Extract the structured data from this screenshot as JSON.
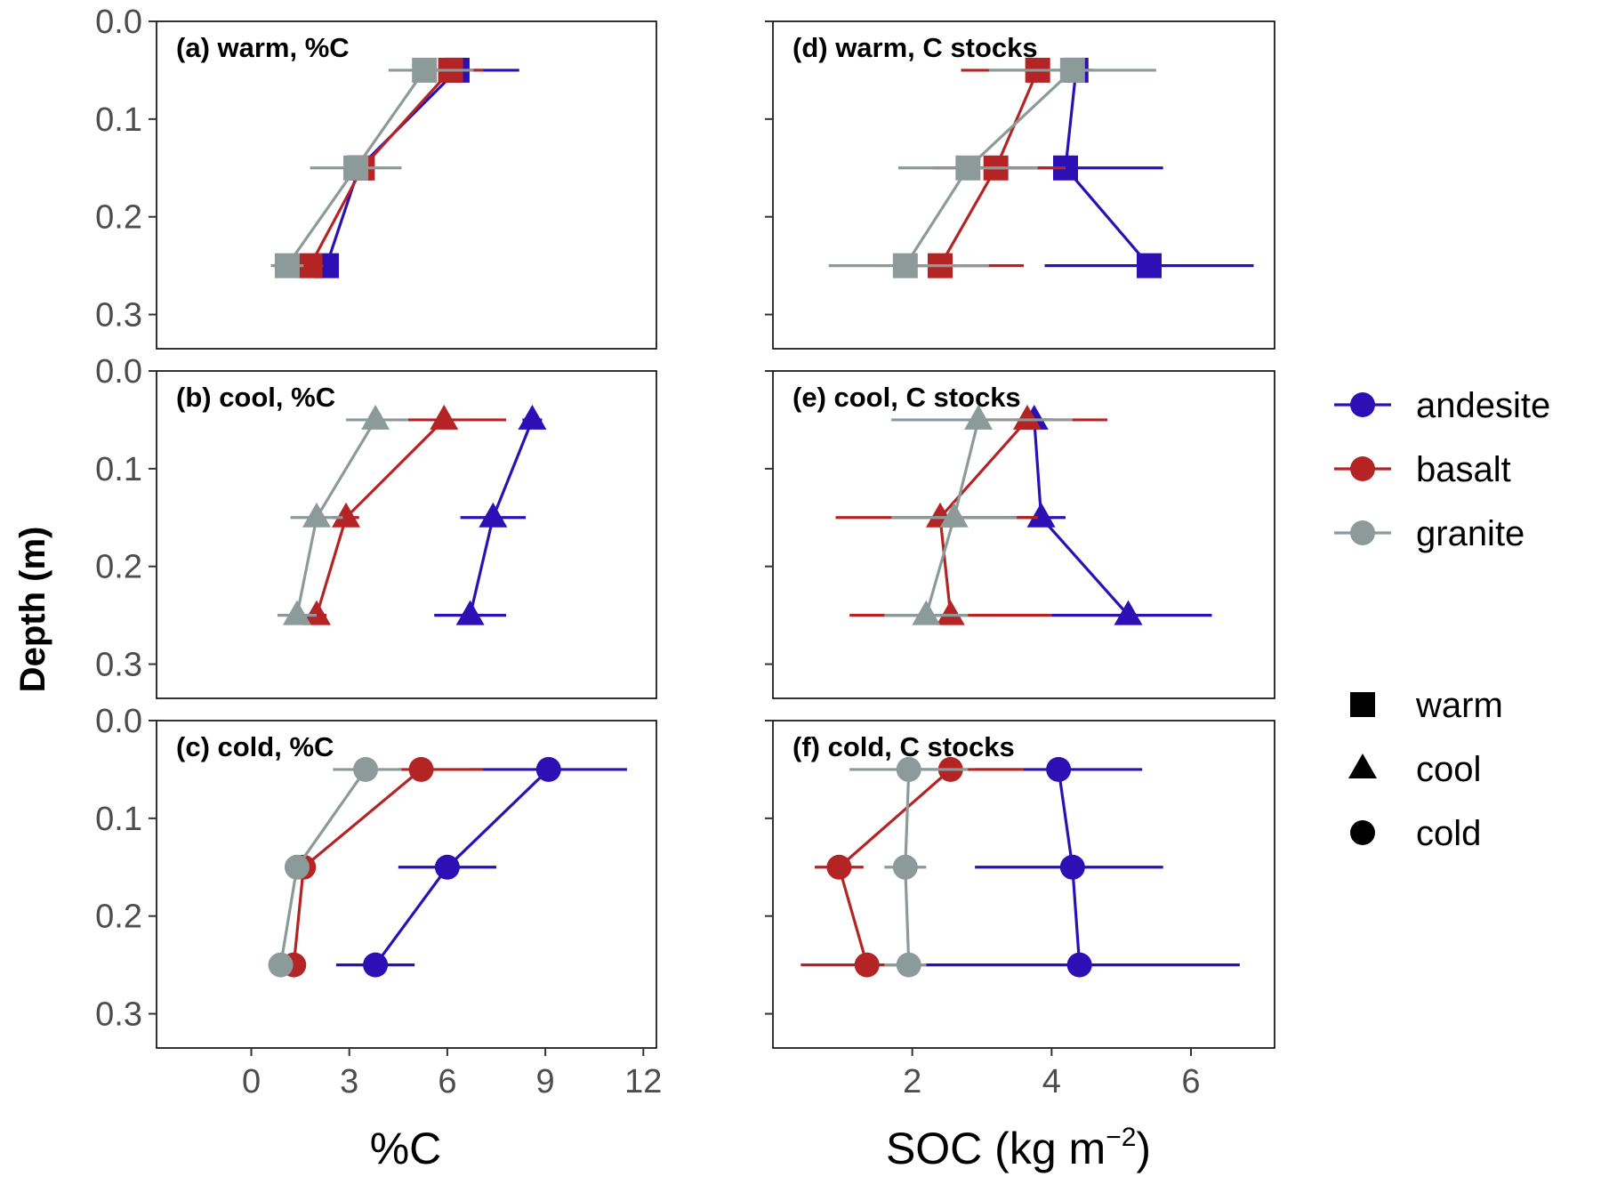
{
  "colors": {
    "andesite": "#2c10b6",
    "basalt": "#b52424",
    "granite": "#8c9a9a",
    "frame": "#000000",
    "tick": "#4d4d4d"
  },
  "labels": {
    "y_title": "Depth (m)",
    "x_title_left": "%C",
    "x_title_right_main": "SOC (kg m",
    "x_title_right_sup": "−2",
    "x_title_right_end": ")"
  },
  "legend": {
    "lithology": [
      {
        "name": "andesite",
        "color": "#2c10b6"
      },
      {
        "name": "basalt",
        "color": "#b52424"
      },
      {
        "name": "granite",
        "color": "#8c9a9a"
      }
    ],
    "climate": [
      {
        "name": "warm",
        "shape": "square"
      },
      {
        "name": "cool",
        "shape": "triangle"
      },
      {
        "name": "cold",
        "shape": "circle"
      }
    ]
  },
  "chart_data": [
    {
      "type": "line",
      "panel": "a",
      "title": "(a) warm, %C",
      "xlabel": "%C",
      "ylabel": "Depth (m)",
      "xlim": [
        -2.9,
        12.4
      ],
      "ylim": [
        0.0,
        0.335
      ],
      "xticks": [
        0,
        3,
        6,
        9,
        12
      ],
      "yticks": [
        0.0,
        0.1,
        0.2,
        0.3
      ],
      "y_reversed": true,
      "marker": "square",
      "grid": false,
      "series": [
        {
          "name": "andesite",
          "depth": [
            0.05,
            0.15,
            0.25
          ],
          "x": [
            6.3,
            3.3,
            2.3
          ],
          "err_lo": [
            5.2,
            3.0,
            1.9
          ],
          "err_hi": [
            8.2,
            3.6,
            2.6
          ]
        },
        {
          "name": "basalt",
          "depth": [
            0.05,
            0.15,
            0.25
          ],
          "x": [
            6.1,
            3.4,
            1.8
          ],
          "err_lo": [
            5.0,
            3.1,
            1.4
          ],
          "err_hi": [
            7.1,
            3.7,
            2.2
          ]
        },
        {
          "name": "granite",
          "depth": [
            0.05,
            0.15,
            0.25
          ],
          "x": [
            5.3,
            3.2,
            1.1
          ],
          "err_lo": [
            4.2,
            1.8,
            0.6
          ],
          "err_hi": [
            6.8,
            4.6,
            1.6
          ]
        }
      ]
    },
    {
      "type": "line",
      "panel": "b",
      "title": "(b) cool, %C",
      "xlabel": "%C",
      "ylabel": "Depth (m)",
      "xlim": [
        -2.9,
        12.4
      ],
      "ylim": [
        0.0,
        0.335
      ],
      "xticks": [
        0,
        3,
        6,
        9,
        12
      ],
      "yticks": [
        0.0,
        0.1,
        0.2,
        0.3
      ],
      "y_reversed": true,
      "marker": "triangle",
      "grid": false,
      "series": [
        {
          "name": "andesite",
          "depth": [
            0.05,
            0.15,
            0.25
          ],
          "x": [
            8.6,
            7.4,
            6.7
          ],
          "err_lo": [
            8.3,
            6.4,
            5.6
          ],
          "err_hi": [
            8.9,
            8.4,
            7.8
          ]
        },
        {
          "name": "basalt",
          "depth": [
            0.05,
            0.15,
            0.25
          ],
          "x": [
            5.9,
            2.9,
            2.0
          ],
          "err_lo": [
            4.8,
            2.5,
            1.7
          ],
          "err_hi": [
            7.8,
            3.3,
            2.3
          ]
        },
        {
          "name": "granite",
          "depth": [
            0.05,
            0.15,
            0.25
          ],
          "x": [
            3.8,
            2.0,
            1.4
          ],
          "err_lo": [
            2.9,
            1.2,
            0.8
          ],
          "err_hi": [
            4.8,
            2.8,
            2.0
          ]
        }
      ]
    },
    {
      "type": "line",
      "panel": "c",
      "title": "(c) cold, %C",
      "xlabel": "%C",
      "ylabel": "Depth (m)",
      "xlim": [
        -2.9,
        12.4
      ],
      "ylim": [
        0.0,
        0.335
      ],
      "xticks": [
        0,
        3,
        6,
        9,
        12
      ],
      "yticks": [
        0.0,
        0.1,
        0.2,
        0.3
      ],
      "y_reversed": true,
      "marker": "circle",
      "grid": false,
      "series": [
        {
          "name": "andesite",
          "depth": [
            0.05,
            0.15,
            0.25
          ],
          "x": [
            9.1,
            6.0,
            3.8
          ],
          "err_lo": [
            6.7,
            4.5,
            2.6
          ],
          "err_hi": [
            11.5,
            7.5,
            5.0
          ]
        },
        {
          "name": "basalt",
          "depth": [
            0.05,
            0.15,
            0.25
          ],
          "x": [
            5.2,
            1.6,
            1.3
          ],
          "err_lo": [
            4.5,
            1.4,
            1.1
          ],
          "err_hi": [
            7.1,
            1.8,
            1.5
          ]
        },
        {
          "name": "granite",
          "depth": [
            0.05,
            0.15,
            0.25
          ],
          "x": [
            3.5,
            1.4,
            0.9
          ],
          "err_lo": [
            2.5,
            1.1,
            0.6
          ],
          "err_hi": [
            4.6,
            1.7,
            1.2
          ]
        }
      ]
    },
    {
      "type": "line",
      "panel": "d",
      "title": "(d) warm, C stocks",
      "xlabel": "SOC (kg m−2)",
      "ylabel": "",
      "xlim": [
        0.0,
        7.2
      ],
      "ylim": [
        0.0,
        0.335
      ],
      "xticks": [
        2,
        4,
        6
      ],
      "yticks": [
        0.0,
        0.1,
        0.2,
        0.3
      ],
      "y_reversed": true,
      "marker": "square",
      "grid": false,
      "series": [
        {
          "name": "andesite",
          "depth": [
            0.05,
            0.15,
            0.25
          ],
          "x": [
            4.35,
            4.2,
            5.4
          ],
          "err_lo": [
            4.1,
            2.8,
            3.9
          ],
          "err_hi": [
            4.6,
            5.6,
            6.9
          ]
        },
        {
          "name": "basalt",
          "depth": [
            0.05,
            0.15,
            0.25
          ],
          "x": [
            3.8,
            3.2,
            2.4
          ],
          "err_lo": [
            2.7,
            2.3,
            1.8
          ],
          "err_hi": [
            4.6,
            4.2,
            3.6
          ]
        },
        {
          "name": "granite",
          "depth": [
            0.05,
            0.15,
            0.25
          ],
          "x": [
            4.3,
            2.8,
            1.9
          ],
          "err_lo": [
            3.1,
            1.8,
            0.8
          ],
          "err_hi": [
            5.5,
            3.8,
            3.1
          ]
        }
      ]
    },
    {
      "type": "line",
      "panel": "e",
      "title": "(e) cool, C stocks",
      "xlabel": "SOC (kg m−2)",
      "ylabel": "",
      "xlim": [
        0.0,
        7.2
      ],
      "ylim": [
        0.0,
        0.335
      ],
      "xticks": [
        2,
        4,
        6
      ],
      "yticks": [
        0.0,
        0.1,
        0.2,
        0.3
      ],
      "y_reversed": true,
      "marker": "triangle",
      "grid": false,
      "series": [
        {
          "name": "andesite",
          "depth": [
            0.05,
            0.15,
            0.25
          ],
          "x": [
            3.75,
            3.85,
            5.1
          ],
          "err_lo": [
            3.5,
            3.4,
            4.0
          ],
          "err_hi": [
            4.0,
            4.2,
            6.3
          ]
        },
        {
          "name": "basalt",
          "depth": [
            0.05,
            0.15,
            0.25
          ],
          "x": [
            3.65,
            2.4,
            2.55
          ],
          "err_lo": [
            2.9,
            0.9,
            1.1
          ],
          "err_hi": [
            4.8,
            3.8,
            4.0
          ]
        },
        {
          "name": "granite",
          "depth": [
            0.05,
            0.15,
            0.25
          ],
          "x": [
            2.95,
            2.6,
            2.2
          ],
          "err_lo": [
            1.7,
            1.7,
            1.6
          ],
          "err_hi": [
            4.3,
            3.5,
            2.8
          ]
        }
      ]
    },
    {
      "type": "line",
      "panel": "f",
      "title": "(f) cold, C stocks",
      "xlabel": "SOC (kg m−2)",
      "ylabel": "",
      "xlim": [
        0.0,
        7.2
      ],
      "ylim": [
        0.0,
        0.335
      ],
      "xticks": [
        2,
        4,
        6
      ],
      "yticks": [
        0.0,
        0.1,
        0.2,
        0.3
      ],
      "y_reversed": true,
      "marker": "circle",
      "grid": false,
      "series": [
        {
          "name": "andesite",
          "depth": [
            0.05,
            0.15,
            0.25
          ],
          "x": [
            4.1,
            4.3,
            4.4
          ],
          "err_lo": [
            2.9,
            2.9,
            2.2
          ],
          "err_hi": [
            5.3,
            5.6,
            6.7
          ]
        },
        {
          "name": "basalt",
          "depth": [
            0.05,
            0.15,
            0.25
          ],
          "x": [
            2.55,
            0.95,
            1.35
          ],
          "err_lo": [
            1.9,
            0.6,
            0.4
          ],
          "err_hi": [
            3.6,
            1.3,
            2.2
          ]
        },
        {
          "name": "granite",
          "depth": [
            0.05,
            0.15,
            0.25
          ],
          "x": [
            1.95,
            1.9,
            1.95
          ],
          "err_lo": [
            1.1,
            1.6,
            1.6
          ],
          "err_hi": [
            2.8,
            2.2,
            2.2
          ]
        }
      ]
    }
  ]
}
